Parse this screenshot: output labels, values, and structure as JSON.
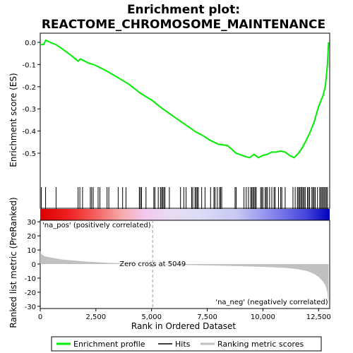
{
  "title_line1": "Enrichment plot:",
  "title_line2": "REACTOME_CHROMOSOME_MAINTENANCE",
  "ylabel_top": "Enrichment score (ES)",
  "ylabel_bottom": "Ranked list metric (PreRanked)",
  "xlabel": "Rank in Ordered Dataset",
  "zero_cross_label": "Zero cross at 5049",
  "pos_label": "'na_pos' (positively correlated)",
  "neg_label": "'na_neg' (negatively correlated)",
  "legend": {
    "enrichment": "Enrichment profile",
    "hits": "Hits",
    "ranking": "Ranking metric scores"
  },
  "colors": {
    "enrichment_line": "#00ee00",
    "pos_text": "#cc0000",
    "neg_text": "#0000cc",
    "metric_fill": "#c0c0c0"
  },
  "chart_data": [
    {
      "type": "line",
      "name": "enrichment",
      "xlim": [
        0,
        13000
      ],
      "ylim": [
        -0.55,
        0.02
      ],
      "yticks": [
        0.0,
        -0.1,
        -0.2,
        -0.3,
        -0.4,
        -0.5
      ],
      "ytick_labels": [
        "0.0",
        "-0.1",
        "-0.2",
        "-0.3",
        "-0.4",
        "-0.5"
      ],
      "x": [
        0,
        150,
        250,
        450,
        700,
        1000,
        1400,
        1700,
        1800,
        2000,
        2200,
        2400,
        2600,
        3000,
        3500,
        4000,
        4500,
        5000,
        5500,
        6000,
        6500,
        7000,
        7300,
        7600,
        8000,
        8400,
        8800,
        9200,
        9400,
        9600,
        9800,
        10000,
        10200,
        10400,
        10600,
        10800,
        11000,
        11200,
        11400,
        11600,
        11800,
        12000,
        12100,
        12300,
        12500,
        12700,
        12800,
        12850,
        12900,
        12950
      ],
      "y": [
        -0.01,
        -0.01,
        0.01,
        0.0,
        -0.01,
        -0.03,
        -0.06,
        -0.085,
        -0.075,
        -0.085,
        -0.095,
        -0.1,
        -0.11,
        -0.13,
        -0.16,
        -0.19,
        -0.23,
        -0.26,
        -0.3,
        -0.335,
        -0.37,
        -0.405,
        -0.42,
        -0.44,
        -0.46,
        -0.465,
        -0.5,
        -0.515,
        -0.52,
        -0.505,
        -0.52,
        -0.51,
        -0.505,
        -0.495,
        -0.495,
        -0.49,
        -0.495,
        -0.51,
        -0.52,
        -0.5,
        -0.47,
        -0.43,
        -0.41,
        -0.36,
        -0.29,
        -0.24,
        -0.2,
        -0.15,
        -0.1,
        0.0
      ]
    },
    {
      "type": "line",
      "name": "ranking metric",
      "xlim": [
        0,
        13000
      ],
      "ylim": [
        -30,
        30
      ],
      "yticks": [
        30,
        20,
        10,
        0,
        -10,
        -20,
        -30
      ],
      "ytick_labels": [
        "30",
        "20",
        "10",
        "0",
        "-10",
        "-20",
        "-30"
      ],
      "xticks": [
        0,
        2500,
        5000,
        7500,
        10000,
        12500
      ],
      "xtick_labels": [
        "0",
        "2,500",
        "5,000",
        "7,500",
        "10,000",
        "12,500"
      ],
      "zero_cross": 5049,
      "x": [
        0,
        50,
        200,
        500,
        1000,
        2000,
        3000,
        4000,
        5049,
        6000,
        7000,
        8000,
        9000,
        10000,
        10500,
        11000,
        11500,
        12000,
        12300,
        12500,
        12700,
        12800,
        12900,
        12950
      ],
      "y": [
        9,
        7,
        5.5,
        4.5,
        3.2,
        1.8,
        0.9,
        0.4,
        0,
        -0.4,
        -0.8,
        -1.1,
        -1.5,
        -2.0,
        -2.3,
        -2.7,
        -3.5,
        -5.0,
        -7.0,
        -9.0,
        -12.5,
        -15,
        -20,
        -29
      ]
    },
    {
      "type": "hits",
      "name": "hits",
      "positions": [
        50,
        240,
        710,
        1700,
        1780,
        1900,
        2250,
        2310,
        2380,
        2600,
        2680,
        3000,
        3080,
        3500,
        3700,
        3850,
        4450,
        4500,
        4550,
        4750,
        5100,
        5150,
        5300,
        5400,
        5450,
        5500,
        5550,
        5600,
        5800,
        6300,
        6450,
        6550,
        6800,
        6850,
        6950,
        7000,
        7050,
        7100,
        7250,
        7400,
        7650,
        7800,
        7850,
        7950,
        8050,
        8100,
        8150,
        8750,
        8800,
        9150,
        9250,
        9350,
        9450,
        9500,
        9550,
        9600,
        9650,
        9700,
        9900,
        9950,
        10000,
        10100,
        10150,
        10200,
        10300,
        10400,
        10500,
        10550,
        10700,
        10800,
        10850,
        11000,
        11350,
        11450,
        11550,
        11600,
        11650,
        11700,
        11750,
        11800,
        11850,
        11900,
        12000,
        12050,
        12100,
        12200,
        12250,
        12300,
        12350,
        12450,
        12550,
        12600,
        12650,
        12700,
        12750,
        12800,
        12850,
        12900
      ]
    }
  ]
}
